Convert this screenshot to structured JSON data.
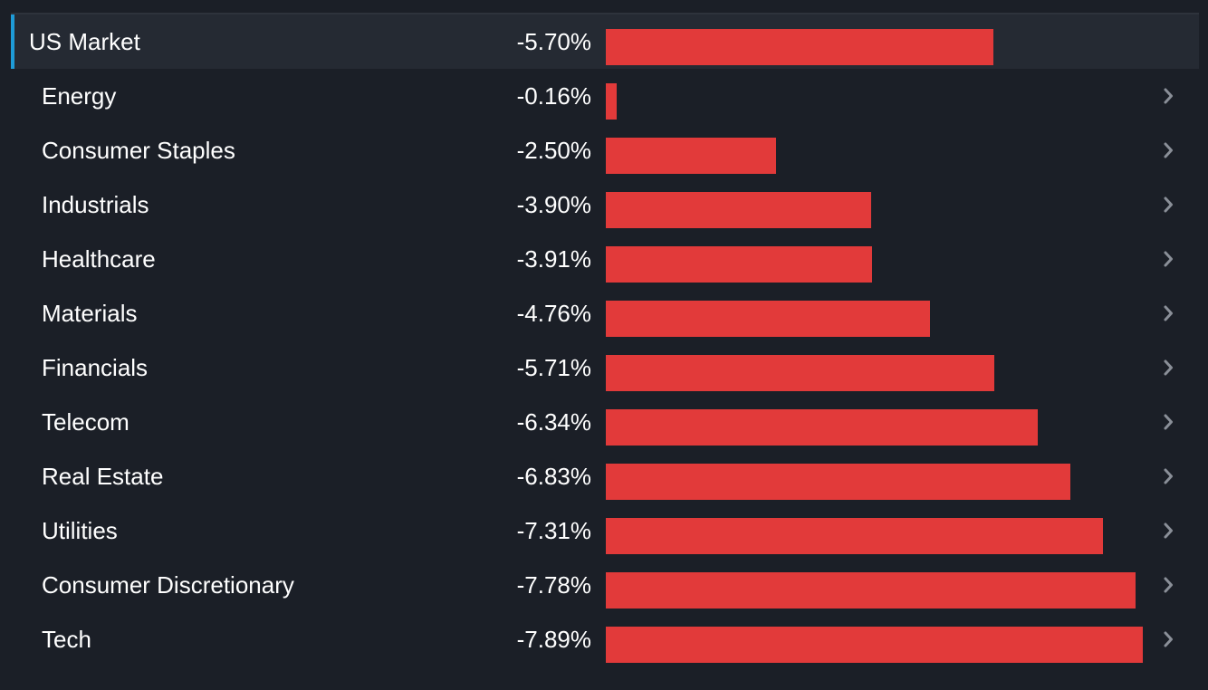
{
  "colors": {
    "background": "#1b1f27",
    "highlight_row": "#252a33",
    "accent": "#1e9bd7",
    "bar": "#e23a3a",
    "text": "#ffffff",
    "chevron": "#8a8f98"
  },
  "chart_data": {
    "type": "bar",
    "orientation": "horizontal",
    "categories": [
      "US Market",
      "Energy",
      "Consumer Staples",
      "Industrials",
      "Healthcare",
      "Materials",
      "Financials",
      "Telecom",
      "Real Estate",
      "Utilities",
      "Consumer Discretionary",
      "Tech"
    ],
    "values": [
      -5.7,
      -0.16,
      -2.5,
      -3.9,
      -3.91,
      -4.76,
      -5.71,
      -6.34,
      -6.83,
      -7.31,
      -7.78,
      -7.89
    ],
    "value_labels": [
      "-5.70%",
      "-0.16%",
      "-2.50%",
      "-3.90%",
      "-3.91%",
      "-4.76%",
      "-5.71%",
      "-6.34%",
      "-6.83%",
      "-7.31%",
      "-7.78%",
      "-7.89%"
    ],
    "highlighted_category": "US Market",
    "grid": false,
    "legend": "none"
  },
  "icons": {
    "row_chevron": "chevron-right-icon"
  }
}
